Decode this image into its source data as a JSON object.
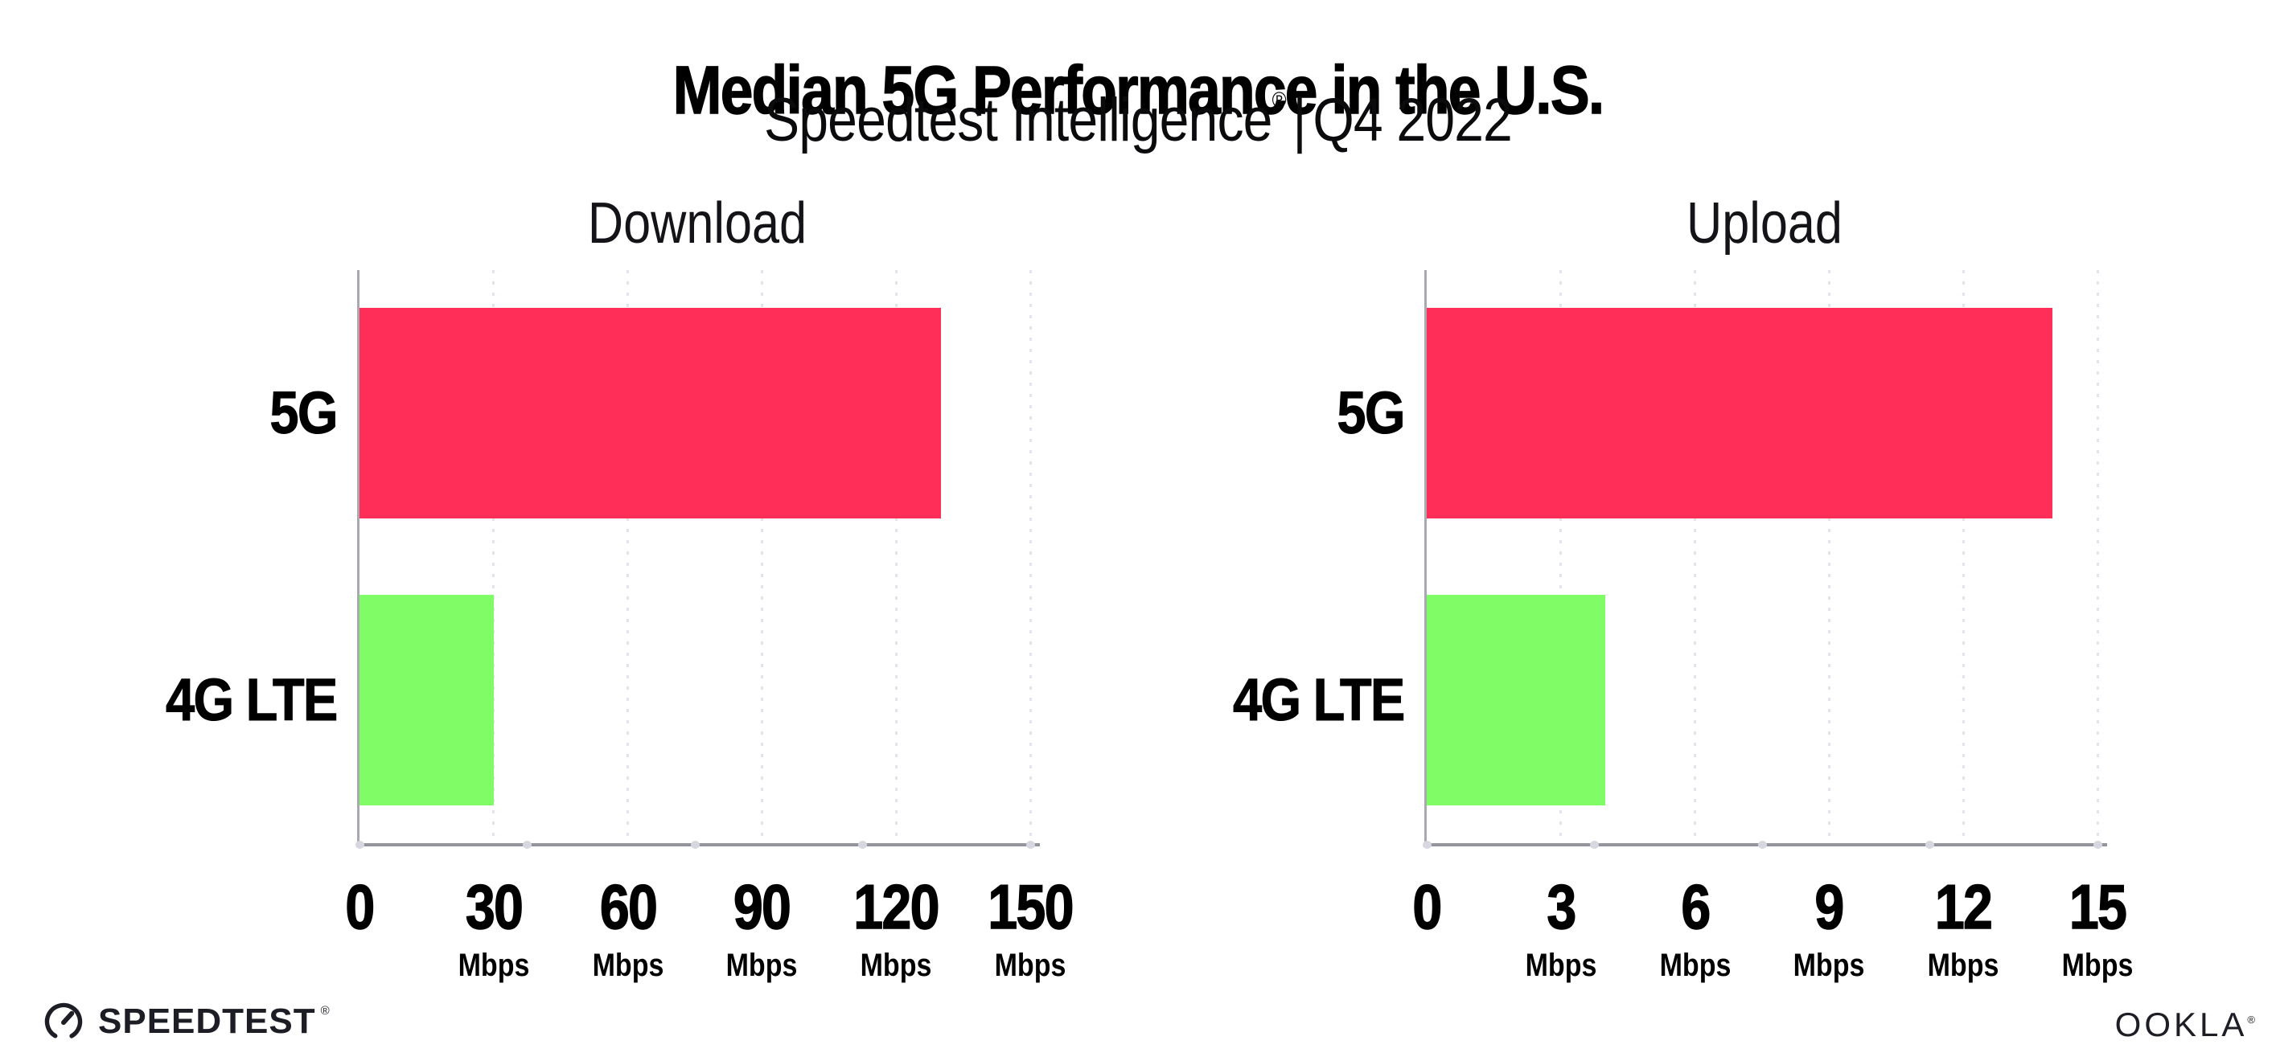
{
  "header": {
    "title": "Median 5G Performance in the U.S.",
    "subtitle_brand": "Speedtest Intelligence",
    "subtitle_reg": "®",
    "subtitle_sep": "|",
    "subtitle_period": "Q4 2022"
  },
  "chart_data": [
    {
      "type": "bar",
      "orientation": "horizontal",
      "title": "Download",
      "categories": [
        "5G",
        "4G LTE"
      ],
      "values": [
        130,
        30
      ],
      "unit": "Mbps",
      "xlim": [
        0,
        150
      ],
      "xticks": [
        0,
        30,
        60,
        90,
        120,
        150
      ],
      "bar_colors": [
        "#FF2E58",
        "#7FFC66"
      ],
      "grid": "dotted-vertical-gridlines",
      "legend": "none"
    },
    {
      "type": "bar",
      "orientation": "horizontal",
      "title": "Upload",
      "categories": [
        "5G",
        "4G LTE"
      ],
      "values": [
        14,
        4
      ],
      "unit": "Mbps",
      "xlim": [
        0,
        15
      ],
      "xticks": [
        0,
        3,
        6,
        9,
        12,
        15
      ],
      "bar_colors": [
        "#FF2E58",
        "#7FFC66"
      ],
      "grid": "dotted-vertical-gridlines",
      "legend": "none"
    }
  ],
  "footer": {
    "speedtest_icon": "speedtest-gauge-icon",
    "speedtest_text": "SPEEDTEST",
    "speedtest_reg": "®",
    "ookla_text": "OOKLA",
    "ookla_reg": "®"
  },
  "colors": {
    "bar_5g": "#FF2E58",
    "bar_4g_lte": "#7FFC66",
    "axis": "#94949c",
    "gridline": "#e3e3ed",
    "text": "#000000",
    "logo": "#1d1d25",
    "background": "#ffffff"
  }
}
